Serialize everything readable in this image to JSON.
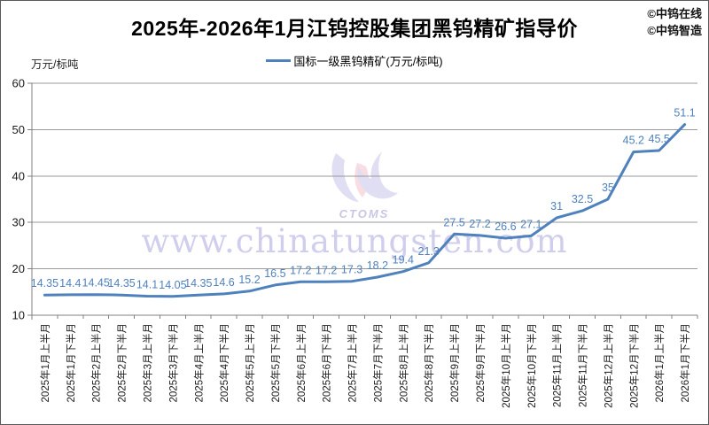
{
  "header": {
    "copyright_line1": "©中钨在线",
    "copyright_line2": "©中钨智造"
  },
  "watermark": {
    "url_text": "www.chinatungsten.com",
    "logo_text": "CTOMS"
  },
  "chart_data": {
    "type": "line",
    "title": "2025年-2026年1月江钨控股集团黑钨精矿指导价",
    "unit_label": "万元/标吨",
    "legend": "国标一级黑钨精矿(万元/标吨)",
    "legend_position": "top",
    "grid": true,
    "ylim": [
      10,
      60
    ],
    "yticks": [
      10,
      20,
      30,
      40,
      50,
      60
    ],
    "line_color": "#4F81BD",
    "label_color": "#4F81BD",
    "grid_color": "#9a9a9a",
    "axis_color": "#808080",
    "tick_label_color": "#1a1a1a",
    "categories": [
      "2025年1月上半月",
      "2025年1月下半月",
      "2025年2月上半月",
      "2025年2月下半月",
      "2025年3月上半月",
      "2025年3月下半月",
      "2025年4月上半月",
      "2025年4月下半月",
      "2025年5月上半月",
      "2025年5月下半月",
      "2025年6月上半月",
      "2025年6月下半月",
      "2025年7月上半月",
      "2025年7月下半月",
      "2025年8月上半月",
      "2025年8月下半月",
      "2025年9月上半月",
      "2025年9月下半月",
      "2025年10月上半月",
      "2025年10月下半月",
      "2025年11月上半月",
      "2025年11月下半月",
      "2025年12月上半月",
      "2025年12月下半月",
      "2026年1月上半月",
      "2026年1月下半月"
    ],
    "values": [
      14.35,
      14.4,
      14.45,
      14.35,
      14.1,
      14.05,
      14.35,
      14.6,
      15.2,
      16.5,
      17.2,
      17.2,
      17.3,
      18.2,
      19.4,
      21.3,
      27.5,
      27.2,
      26.6,
      27.1,
      31,
      32.5,
      35,
      45.2,
      45.5,
      51.1
    ],
    "labels": [
      "14.35",
      "14.4",
      "14.45",
      "14.35",
      "14.1",
      "14.05",
      "14.35",
      "14.6",
      "15.2",
      "16.5",
      "17.2",
      "17.2",
      "17.3",
      "18.2",
      "19.4",
      "21.3",
      "27.5",
      "27.2",
      "26.6",
      "27.1",
      "31",
      "32.5",
      "35",
      "45.2",
      "45.5",
      "51.1"
    ]
  }
}
